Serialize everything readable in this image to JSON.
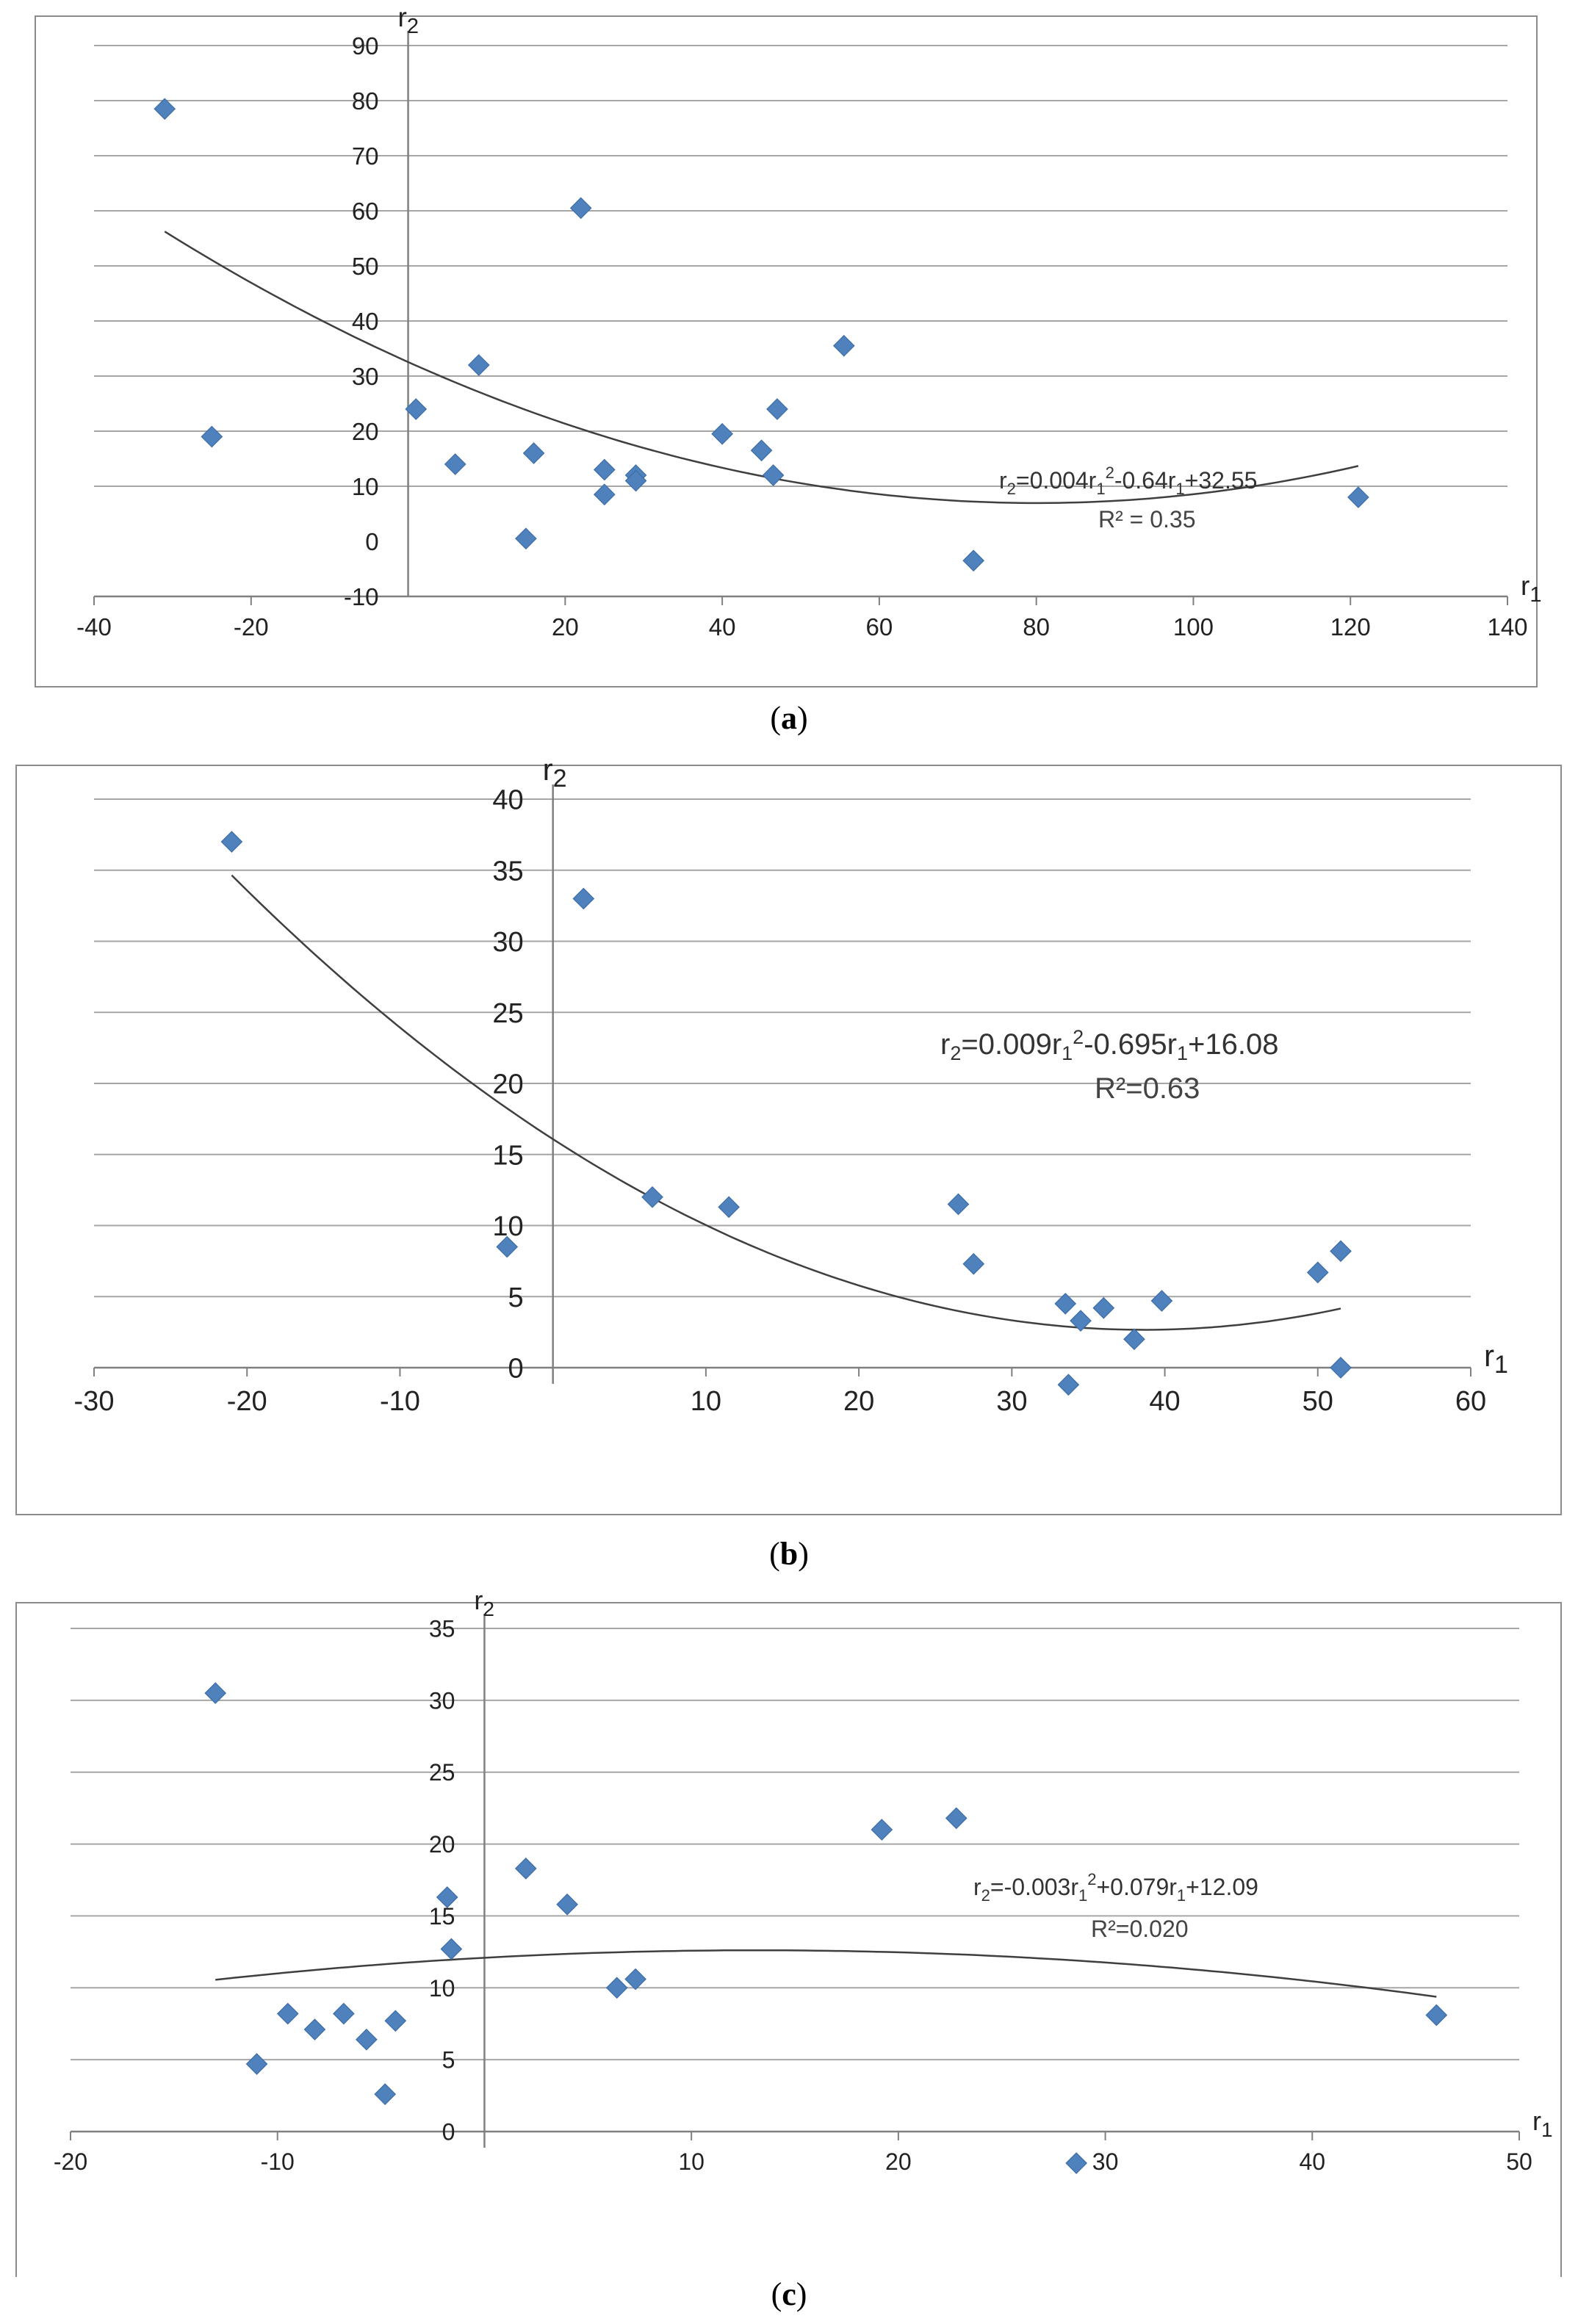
{
  "chart_data": [
    {
      "type": "scatter",
      "label": "a",
      "xlabel": "r",
      "xlabel_sub": "1",
      "ylabel": "r",
      "ylabel_sub": "2",
      "xlim": [
        -40,
        140
      ],
      "ylim": [
        -10,
        90
      ],
      "x_ticks": [
        -40,
        -20,
        20,
        40,
        60,
        80,
        100,
        120,
        140
      ],
      "y_ticks": [
        0,
        10,
        20,
        30,
        40,
        50,
        60,
        70,
        80,
        90
      ],
      "y_tick_bottom": -10,
      "grid": true,
      "color": "#4f81bd",
      "points": [
        {
          "x": -31,
          "y": 78.5
        },
        {
          "x": -25,
          "y": 19
        },
        {
          "x": 1,
          "y": 24
        },
        {
          "x": 6,
          "y": 14
        },
        {
          "x": 9,
          "y": 32
        },
        {
          "x": 15,
          "y": 0.5
        },
        {
          "x": 16,
          "y": 16
        },
        {
          "x": 22,
          "y": 60.5
        },
        {
          "x": 25,
          "y": 13
        },
        {
          "x": 25,
          "y": 8.5
        },
        {
          "x": 29,
          "y": 12
        },
        {
          "x": 29,
          "y": 11
        },
        {
          "x": 40,
          "y": 19.5
        },
        {
          "x": 45,
          "y": 16.5
        },
        {
          "x": 46.5,
          "y": 12
        },
        {
          "x": 47,
          "y": 24
        },
        {
          "x": 55.5,
          "y": 35.5
        },
        {
          "x": 72,
          "y": -3.5
        },
        {
          "x": 121,
          "y": 8
        }
      ],
      "trendline": {
        "a": 0.004,
        "b": -0.64,
        "c": 32.55,
        "x_from": -31,
        "x_to": 121
      },
      "equation_parts": [
        "r",
        "2",
        "=0.004r",
        "1",
        "2",
        "-0.64r",
        "1",
        "+32.55"
      ],
      "r2_label": "R² = 0.35"
    },
    {
      "type": "scatter",
      "label": "b",
      "xlabel": "r",
      "xlabel_sub": "1",
      "ylabel": "r",
      "ylabel_sub": "2",
      "xlim": [
        -30,
        60
      ],
      "ylim": [
        0,
        40
      ],
      "x_ticks": [
        -30,
        -20,
        -10,
        10,
        20,
        30,
        40,
        50,
        60
      ],
      "y_ticks": [
        0,
        5,
        10,
        15,
        20,
        25,
        30,
        35,
        40
      ],
      "grid": true,
      "color": "#4f81bd",
      "points": [
        {
          "x": -21,
          "y": 37
        },
        {
          "x": -3,
          "y": 8.5
        },
        {
          "x": 2,
          "y": 33
        },
        {
          "x": 6.5,
          "y": 12
        },
        {
          "x": 11.5,
          "y": 11.3
        },
        {
          "x": 26.5,
          "y": 11.5
        },
        {
          "x": 27.5,
          "y": 7.3
        },
        {
          "x": 33.5,
          "y": 4.5
        },
        {
          "x": 33.7,
          "y": -1.2
        },
        {
          "x": 34.5,
          "y": 3.3
        },
        {
          "x": 36,
          "y": 4.2
        },
        {
          "x": 38,
          "y": 2
        },
        {
          "x": 39.8,
          "y": 4.7
        },
        {
          "x": 50,
          "y": 6.7
        },
        {
          "x": 51.5,
          "y": 8.2
        },
        {
          "x": 51.5,
          "y": 0
        }
      ],
      "trendline": {
        "a": 0.009,
        "b": -0.695,
        "c": 16.08,
        "x_from": -21,
        "x_to": 51.5
      },
      "equation_parts": [
        "r",
        "2",
        "=0.009r",
        "1",
        "2",
        "-0.695r",
        "1",
        "+16.08"
      ],
      "r2_label": "R²=0.63"
    },
    {
      "type": "scatter",
      "label": "c",
      "xlabel": "r",
      "xlabel_sub": "1",
      "ylabel": "r",
      "ylabel_sub": "2",
      "xlim": [
        -20,
        50
      ],
      "ylim": [
        0,
        35
      ],
      "x_ticks": [
        -20,
        -10,
        10,
        20,
        30,
        40,
        50
      ],
      "y_ticks": [
        0,
        5,
        10,
        15,
        20,
        25,
        30,
        35
      ],
      "grid": true,
      "color": "#4f81bd",
      "points": [
        {
          "x": -13,
          "y": 30.5
        },
        {
          "x": -11,
          "y": 4.7
        },
        {
          "x": -9.5,
          "y": 8.2
        },
        {
          "x": -8.2,
          "y": 7.1
        },
        {
          "x": -6.8,
          "y": 8.2
        },
        {
          "x": -5.7,
          "y": 6.4
        },
        {
          "x": -4.8,
          "y": 2.6
        },
        {
          "x": -4.3,
          "y": 7.7
        },
        {
          "x": -1.8,
          "y": 16.3
        },
        {
          "x": -1.6,
          "y": 12.7
        },
        {
          "x": 2,
          "y": 18.3
        },
        {
          "x": 4,
          "y": 15.8
        },
        {
          "x": 6.4,
          "y": 10
        },
        {
          "x": 7.3,
          "y": 10.6
        },
        {
          "x": 19.2,
          "y": 21
        },
        {
          "x": 22.8,
          "y": 21.8
        },
        {
          "x": 28.6,
          "y": -2.2
        },
        {
          "x": 46,
          "y": 8.1
        }
      ],
      "trendline": {
        "a": -0.003,
        "b": 0.079,
        "c": 12.09,
        "x_from": -13,
        "x_to": 46
      },
      "equation_parts": [
        "r",
        "2",
        "=-0.003r",
        "1",
        "2",
        "+0.079r",
        "1",
        "+12.09"
      ],
      "r2_label": "R²=0.020"
    }
  ]
}
